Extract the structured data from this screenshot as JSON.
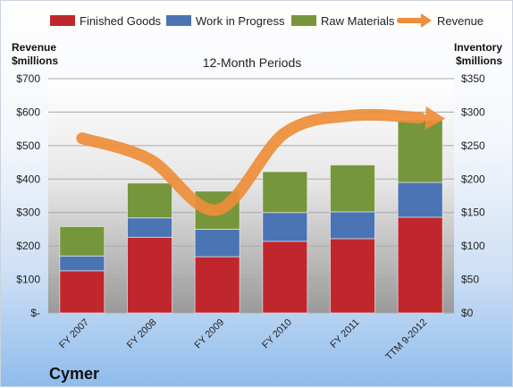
{
  "chart_data": {
    "type": "bar",
    "stacked": true,
    "company": "Cymer",
    "subtitle": "12-Month Periods",
    "y_left_label": [
      "Revenue",
      "$millions"
    ],
    "y_right_label": [
      "Inventory",
      "$millions"
    ],
    "y_left_range": [
      0,
      700
    ],
    "y_right_range": [
      0,
      350
    ],
    "y_left_ticks": [
      "$-",
      "$100",
      "$200",
      "$300",
      "$400",
      "$500",
      "$600",
      "$700"
    ],
    "y_right_ticks": [
      "$0",
      "$50",
      "$100",
      "$150",
      "$200",
      "$250",
      "$300",
      "$350"
    ],
    "categories": [
      "FY 2007",
      "FY 2008",
      "FY 2009",
      "FY 2010",
      "FY 2011",
      "TTM 9-2012"
    ],
    "legend_position": "top",
    "grid": true,
    "series": [
      {
        "name": "Finished Goods",
        "axis": "right",
        "color": "#c0272d",
        "values": [
          63,
          113,
          84,
          107,
          111,
          143
        ]
      },
      {
        "name": "Work in Progress",
        "axis": "right",
        "color": "#4a74b3",
        "values": [
          22,
          29,
          41,
          43,
          40,
          52
        ]
      },
      {
        "name": "Raw Materials",
        "axis": "right",
        "color": "#76963c",
        "values": [
          44,
          52,
          57,
          61,
          70,
          93
        ]
      },
      {
        "name": "Revenue",
        "axis": "left",
        "type": "line",
        "color": "#ee8d3a",
        "values": [
          522,
          459,
          308,
          538,
          590,
          583
        ]
      }
    ]
  }
}
